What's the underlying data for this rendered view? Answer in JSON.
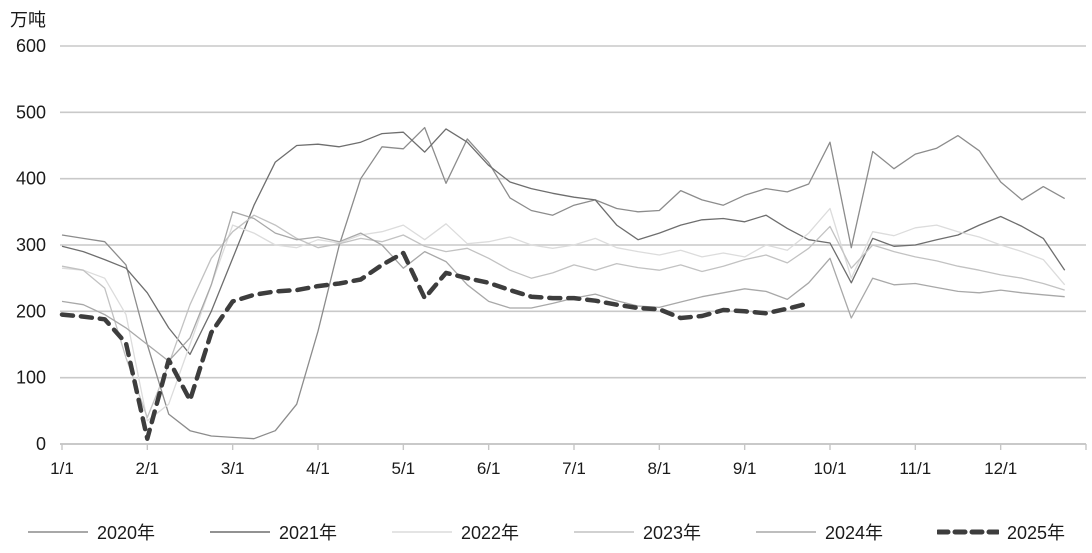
{
  "chart_data": {
    "type": "line",
    "title": "",
    "unit_label": "万吨",
    "xlabel": "",
    "ylabel": "万吨",
    "ylim": [
      0,
      600
    ],
    "y_ticks": [
      0,
      100,
      200,
      300,
      400,
      500,
      600
    ],
    "x_tick_labels": [
      "1/1",
      "2/1",
      "3/1",
      "4/1",
      "5/1",
      "6/1",
      "7/1",
      "8/1",
      "9/1",
      "10/1",
      "11/1",
      "12/1"
    ],
    "points_per_month": 4,
    "grid": "horizontal",
    "legend_position": "bottom",
    "axis_color": "#c6c6c6",
    "gridline_color": "#c9c9c9",
    "text_color": "#1a1a1a",
    "series": [
      {
        "name": "2020年",
        "color": "#8c8c8c",
        "style": "solid",
        "width": 1.3,
        "values": [
          315,
          310,
          305,
          270,
          150,
          45,
          20,
          12,
          10,
          8,
          20,
          60,
          170,
          300,
          400,
          448,
          445,
          477,
          393,
          460,
          424,
          371,
          352,
          345,
          360,
          368,
          355,
          350,
          352,
          382,
          368,
          360,
          375,
          385,
          380,
          392,
          455,
          296,
          441,
          415,
          437,
          446,
          465,
          442,
          395,
          368,
          388,
          370
        ]
      },
      {
        "name": "2021年",
        "color": "#6e6e6e",
        "style": "solid",
        "width": 1.3,
        "values": [
          298,
          290,
          278,
          265,
          228,
          175,
          135,
          200,
          280,
          360,
          425,
          450,
          452,
          448,
          455,
          468,
          470,
          440,
          475,
          455,
          420,
          395,
          385,
          378,
          372,
          368,
          330,
          308,
          318,
          330,
          338,
          340,
          335,
          345,
          325,
          308,
          303,
          243,
          310,
          298,
          300,
          308,
          315,
          330,
          343,
          328,
          310,
          262
        ]
      },
      {
        "name": "2022年",
        "color": "#dcdcdc",
        "style": "solid",
        "width": 1.3,
        "values": [
          265,
          262,
          250,
          195,
          35,
          60,
          150,
          240,
          330,
          318,
          300,
          296,
          308,
          303,
          315,
          320,
          330,
          308,
          332,
          302,
          305,
          312,
          300,
          295,
          300,
          310,
          296,
          290,
          285,
          292,
          282,
          288,
          282,
          300,
          292,
          318,
          355,
          250,
          320,
          314,
          326,
          330,
          320,
          312,
          300,
          290,
          278,
          240
        ]
      },
      {
        "name": "2023年",
        "color": "#c2c2c2",
        "style": "solid",
        "width": 1.3,
        "values": [
          268,
          262,
          235,
          130,
          40,
          120,
          210,
          280,
          320,
          345,
          330,
          310,
          296,
          302,
          310,
          305,
          315,
          298,
          290,
          295,
          280,
          262,
          250,
          258,
          270,
          262,
          272,
          266,
          262,
          270,
          260,
          268,
          278,
          285,
          273,
          295,
          328,
          265,
          300,
          290,
          282,
          276,
          268,
          262,
          255,
          250,
          242,
          232
        ]
      },
      {
        "name": "2024年",
        "color": "#a8a8a8",
        "style": "solid",
        "width": 1.3,
        "values": [
          215,
          210,
          195,
          175,
          150,
          125,
          160,
          240,
          350,
          340,
          318,
          308,
          312,
          305,
          318,
          300,
          265,
          290,
          275,
          240,
          215,
          205,
          205,
          212,
          220,
          226,
          216,
          208,
          206,
          214,
          222,
          228,
          234,
          230,
          218,
          243,
          280,
          190,
          250,
          240,
          242,
          236,
          230,
          228,
          232,
          228,
          225,
          222
        ]
      },
      {
        "name": "2025年",
        "color": "#3d3d3d",
        "style": "dashed",
        "width": 4.5,
        "values": [
          195,
          192,
          188,
          152,
          8,
          127,
          66,
          168,
          215,
          225,
          230,
          232,
          238,
          242,
          248,
          270,
          288,
          220,
          258,
          250,
          243,
          232,
          222,
          220,
          220,
          216,
          210,
          205,
          203,
          190,
          193,
          202,
          200,
          197,
          204,
          212
        ]
      }
    ]
  }
}
